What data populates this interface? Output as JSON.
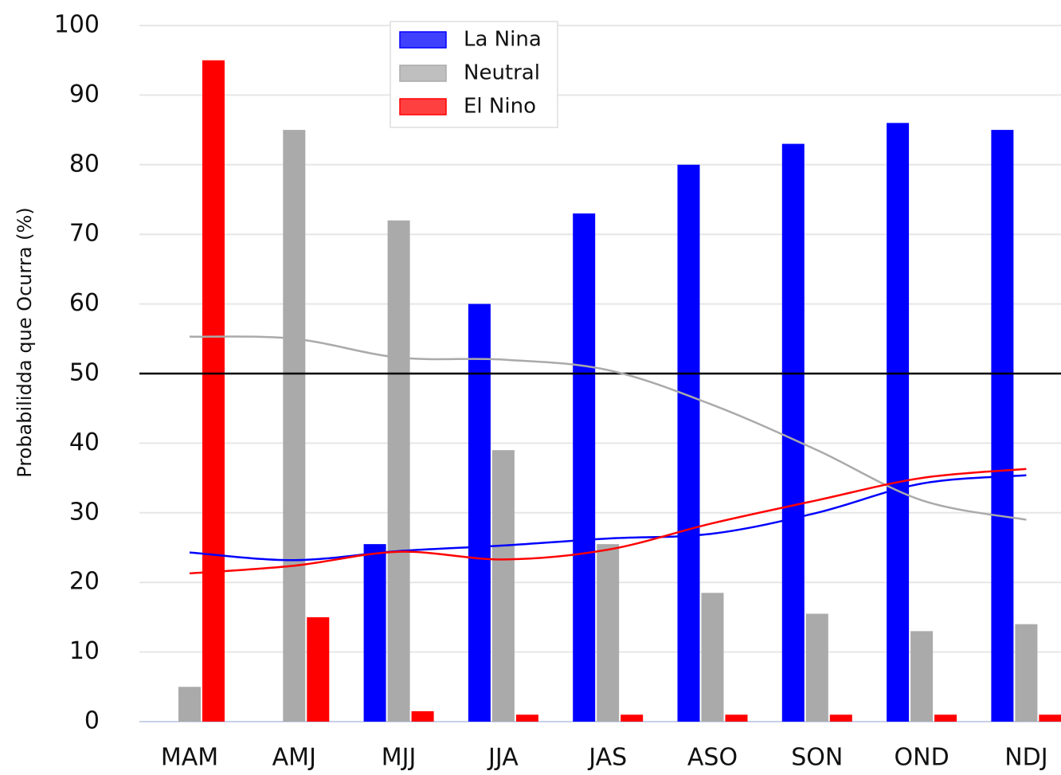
{
  "chart_data": {
    "type": "bar",
    "y_label": "Probabilidda que Ocurra (%)",
    "categories": [
      "MAM",
      "AMJ",
      "MJJ",
      "JJA",
      "JAS",
      "ASO",
      "SON",
      "OND",
      "NDJ"
    ],
    "series": [
      {
        "name": "La Nina",
        "color": "#0000ff",
        "values": [
          0,
          0,
          25.5,
          60,
          73,
          80,
          83,
          86,
          85
        ],
        "trend": [
          24.3,
          23.2,
          24.5,
          25.3,
          26.3,
          27,
          30,
          34.2,
          35.4
        ]
      },
      {
        "name": "Neutral",
        "color": "#aaaaaa",
        "values": [
          5,
          85,
          72,
          39,
          25.5,
          18.5,
          15.5,
          13,
          14
        ],
        "trend": [
          55.3,
          55,
          52.3,
          52,
          50.5,
          45.5,
          39,
          31.8,
          29
        ]
      },
      {
        "name": "El Nino",
        "color": "#ff0000",
        "values": [
          95,
          15,
          1.5,
          1,
          1,
          1,
          1,
          1,
          1
        ],
        "trend": [
          21.3,
          22.4,
          24.4,
          23.3,
          24.7,
          28.5,
          31.8,
          35,
          36.3
        ]
      }
    ],
    "reference_line": 50,
    "ylim": [
      0,
      100
    ],
    "yticks": [
      0,
      10,
      20,
      30,
      40,
      50,
      60,
      70,
      80,
      90,
      100
    ],
    "grid": true,
    "legend": "top"
  }
}
